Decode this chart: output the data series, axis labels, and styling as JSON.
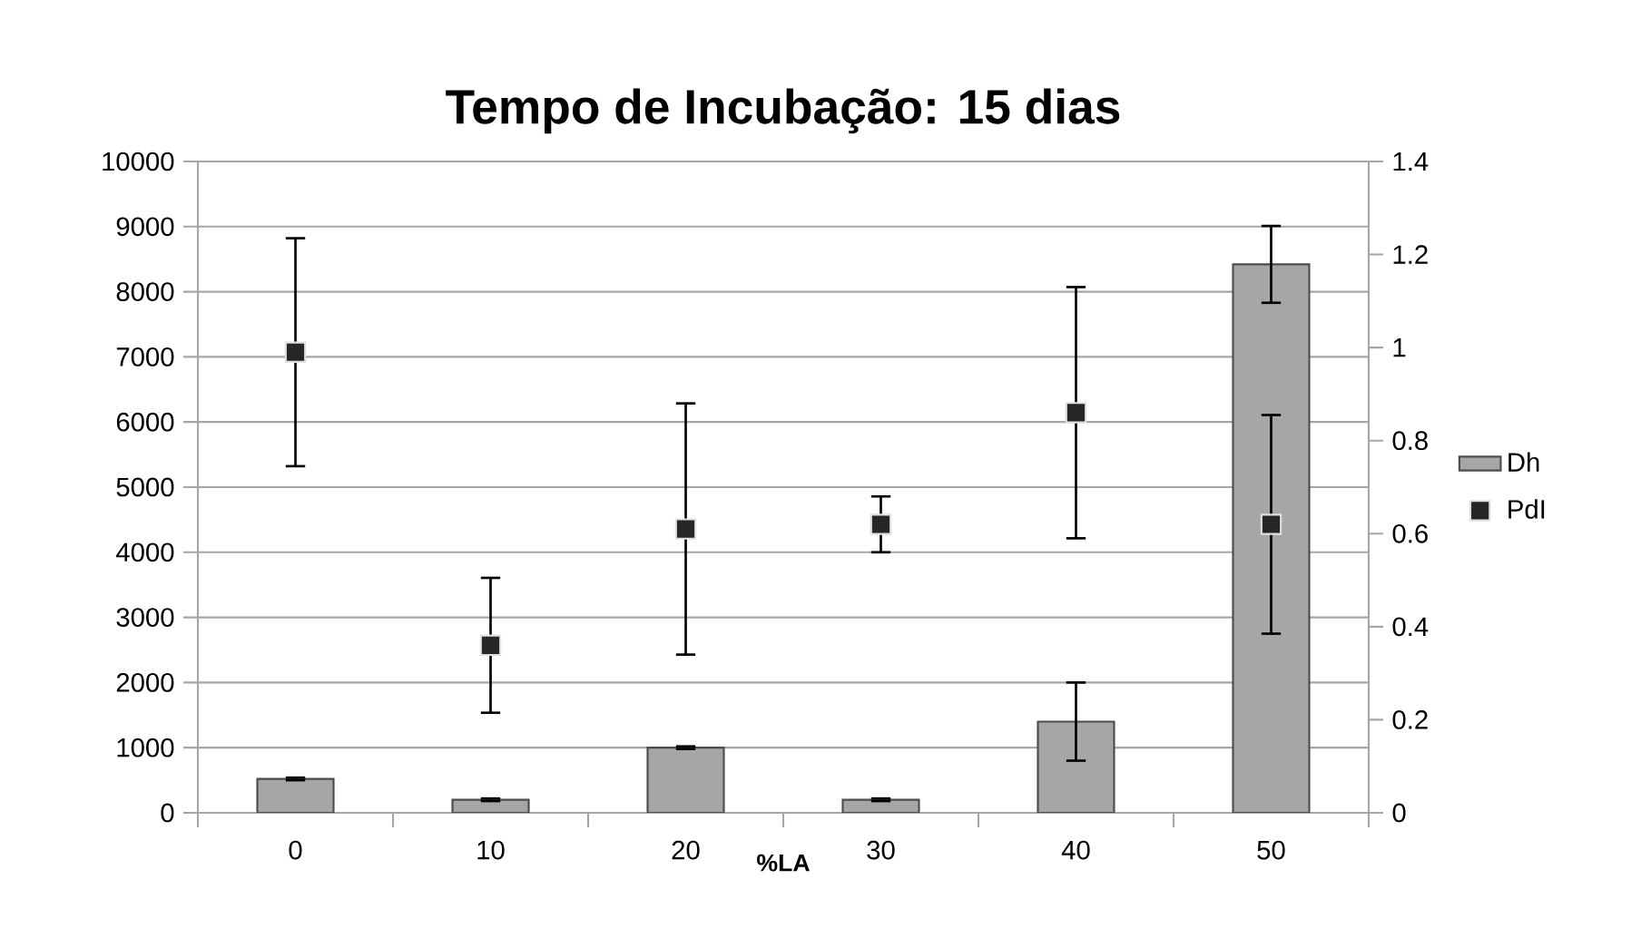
{
  "chart_data": {
    "type": "bar",
    "title": "Tempo de Incubação: 15 dias",
    "xlabel": "%LA",
    "categories": [
      "0",
      "10",
      "20",
      "30",
      "40",
      "50"
    ],
    "series": [
      {
        "name": "Dh",
        "color": "#a6a6a6",
        "values": [
          520,
          200,
          1000,
          200,
          1400,
          8420
        ],
        "errors": [
          20,
          20,
          20,
          20,
          600,
          590
        ]
      },
      {
        "name": "PdI",
        "type": "scatter",
        "axis": "y2",
        "marker": "square",
        "color": "#262626",
        "values": [
          0.99,
          0.36,
          0.61,
          0.62,
          0.86,
          0.62
        ],
        "errors": [
          0.245,
          0.145,
          0.27,
          0.06,
          0.27,
          0.235
        ]
      }
    ],
    "ylim": [
      0,
      10000
    ],
    "yticks": [
      0,
      1000,
      2000,
      3000,
      4000,
      5000,
      6000,
      7000,
      8000,
      9000,
      10000
    ],
    "y2lim": [
      0,
      1.4
    ],
    "y2ticks": [
      0,
      0.2,
      0.4,
      0.6,
      0.8,
      1,
      1.2,
      1.4
    ],
    "grid": "y",
    "legend": "right"
  }
}
